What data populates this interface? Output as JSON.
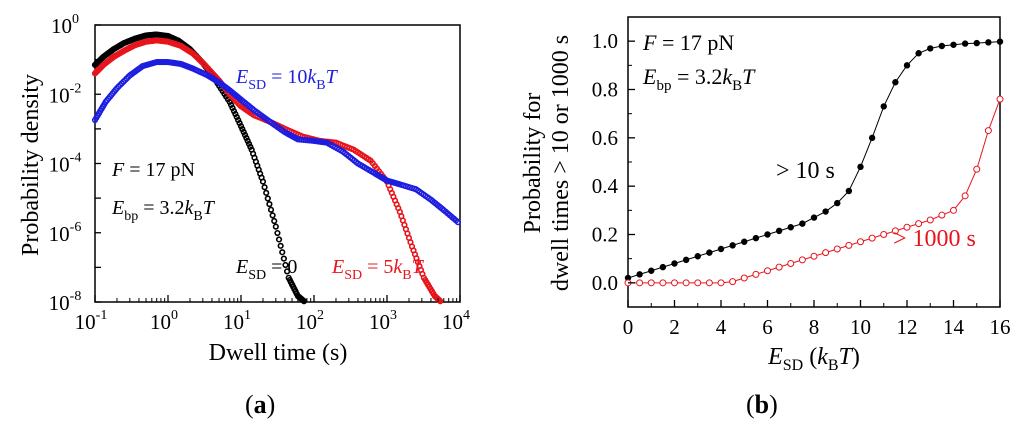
{
  "chart_data": [
    {
      "panel": "a",
      "type": "scatter",
      "xlabel": "Dwell time (s)",
      "ylabel": "Probability density",
      "x_scale": "log",
      "y_scale": "log",
      "xlim": [
        0.1,
        10000
      ],
      "ylim": [
        1e-08,
        1
      ],
      "x_ticks": [
        "10",
        "10",
        "10",
        "10",
        "10",
        "10"
      ],
      "x_tick_exponents": [
        "-1",
        "0",
        "1",
        "2",
        "3",
        "4"
      ],
      "y_ticks": [
        "10",
        "10",
        "10",
        "10",
        "10"
      ],
      "y_tick_exponents": [
        "-8",
        "-6",
        "-4",
        "-2",
        "0"
      ],
      "grid": false,
      "annotations": {
        "force": {
          "prefix": "F",
          "text": " = 17 pN"
        },
        "ebp": {
          "prefix": "E",
          "sub": "bp",
          "text": " = 3.2",
          "k": "k",
          "ksub": "B",
          "T": "T"
        }
      },
      "series": [
        {
          "name_prefix": "E",
          "name_sub": "SD",
          "name_value": " = 0",
          "name_k": "",
          "name_ksub": "",
          "name_T": "",
          "color": "#000000",
          "x": [
            0.1,
            0.13,
            0.18,
            0.25,
            0.35,
            0.5,
            0.7,
            1.0,
            1.4,
            2.0,
            3.0,
            4.5,
            7,
            10,
            14,
            20,
            30,
            45,
            60,
            75
          ],
          "y": [
            0.07,
            0.12,
            0.2,
            0.3,
            0.4,
            0.5,
            0.53,
            0.48,
            0.35,
            0.2,
            0.08,
            0.025,
            0.006,
            0.0012,
            0.00025,
            3e-05,
            1.5e-06,
            5e-08,
            1.5e-08,
            1e-08
          ]
        },
        {
          "name_prefix": "E",
          "name_sub": "SD",
          "name_value": " = 5",
          "name_k": "k",
          "name_ksub": "B",
          "name_T": "T",
          "color": "#e8141c",
          "x": [
            0.1,
            0.13,
            0.18,
            0.25,
            0.35,
            0.5,
            0.7,
            1.0,
            1.5,
            2.2,
            3.2,
            5,
            7,
            10,
            15,
            25,
            40,
            70,
            120,
            200,
            350,
            600,
            1000,
            1500,
            2200,
            3200,
            4500,
            5500
          ],
          "y": [
            0.04,
            0.07,
            0.12,
            0.18,
            0.26,
            0.33,
            0.36,
            0.33,
            0.25,
            0.15,
            0.07,
            0.025,
            0.01,
            0.0045,
            0.0025,
            0.0016,
            0.001,
            0.0006,
            0.00045,
            0.0004,
            0.00025,
            0.00012,
            3e-05,
            4e-06,
            4e-07,
            5e-08,
            1.5e-08,
            1e-08
          ]
        },
        {
          "name_prefix": "E",
          "name_sub": "SD",
          "name_value": " = 10",
          "name_k": "k",
          "name_ksub": "B",
          "name_T": "T",
          "color": "#1d1de0",
          "x": [
            0.1,
            0.14,
            0.2,
            0.3,
            0.45,
            0.7,
            1.0,
            1.5,
            2.2,
            3.5,
            5,
            7,
            10,
            15,
            25,
            40,
            60,
            100,
            150,
            250,
            400,
            700,
            1000,
            1500,
            2500,
            4000,
            6000,
            10000
          ],
          "y": [
            0.0018,
            0.006,
            0.015,
            0.035,
            0.065,
            0.085,
            0.085,
            0.075,
            0.055,
            0.035,
            0.022,
            0.013,
            0.007,
            0.0035,
            0.0016,
            0.0008,
            0.0005,
            0.00045,
            0.0004,
            0.00022,
            0.0001,
            5e-05,
            3.2e-05,
            2.5e-05,
            1.8e-05,
            9e-06,
            4.5e-06,
            1.8e-06
          ]
        }
      ]
    },
    {
      "panel": "b",
      "type": "line",
      "xlabel_prefix": "E",
      "xlabel_sub": "SD",
      "xlabel_unit_k": "k",
      "xlabel_unit_ksub": "B",
      "xlabel_unit_T": "T",
      "ylabel_line1": "Probability for",
      "ylabel_line2": "dwell times > 10 or 1000 s",
      "xlim": [
        0,
        16
      ],
      "ylim": [
        -0.1,
        1.1
      ],
      "x_ticks": [
        0,
        2,
        4,
        6,
        8,
        10,
        12,
        14,
        16
      ],
      "y_ticks": [
        "0.0",
        "0.2",
        "0.4",
        "0.6",
        "0.8",
        "1.0"
      ],
      "y_tick_values": [
        0,
        0.2,
        0.4,
        0.6,
        0.8,
        1.0
      ],
      "grid": false,
      "annotations": {
        "force": {
          "prefix": "F",
          "text": " = 17 pN"
        },
        "ebp": {
          "prefix": "E",
          "sub": "bp",
          "text": " = 3.2",
          "k": "k",
          "ksub": "B",
          "T": "T"
        }
      },
      "series": [
        {
          "name": "> 10 s",
          "color": "#000000",
          "marker": "filled",
          "x": [
            0,
            0.5,
            1,
            1.5,
            2,
            2.5,
            3,
            3.5,
            4,
            4.5,
            5,
            5.5,
            6,
            6.5,
            7,
            7.5,
            8,
            8.5,
            9,
            9.5,
            10,
            10.5,
            11,
            11.5,
            12,
            12.5,
            13,
            13.5,
            14,
            14.5,
            15,
            15.5,
            16
          ],
          "y": [
            0.02,
            0.035,
            0.05,
            0.065,
            0.08,
            0.095,
            0.11,
            0.125,
            0.14,
            0.155,
            0.17,
            0.185,
            0.2,
            0.215,
            0.23,
            0.245,
            0.27,
            0.295,
            0.33,
            0.38,
            0.48,
            0.6,
            0.73,
            0.83,
            0.9,
            0.95,
            0.97,
            0.98,
            0.985,
            0.99,
            0.992,
            0.995,
            0.998
          ]
        },
        {
          "name": "> 1000 s",
          "color": "#e8141c",
          "marker": "open",
          "x": [
            0,
            0.5,
            1,
            1.5,
            2,
            2.5,
            3,
            3.5,
            4,
            4.5,
            5,
            5.5,
            6,
            6.5,
            7,
            7.5,
            8,
            8.5,
            9,
            9.5,
            10,
            10.5,
            11,
            11.5,
            12,
            12.5,
            13,
            13.5,
            14,
            14.5,
            15,
            15.5,
            16
          ],
          "y": [
            0.0,
            0.0,
            0.0,
            0.0,
            0.0,
            0.0,
            0.0,
            0.0,
            0.0,
            0.005,
            0.02,
            0.035,
            0.05,
            0.065,
            0.08,
            0.095,
            0.11,
            0.125,
            0.14,
            0.155,
            0.17,
            0.185,
            0.2,
            0.215,
            0.23,
            0.245,
            0.26,
            0.28,
            0.3,
            0.36,
            0.47,
            0.63,
            0.76
          ]
        }
      ]
    }
  ],
  "panel_labels": {
    "a": "a",
    "b": "b"
  }
}
